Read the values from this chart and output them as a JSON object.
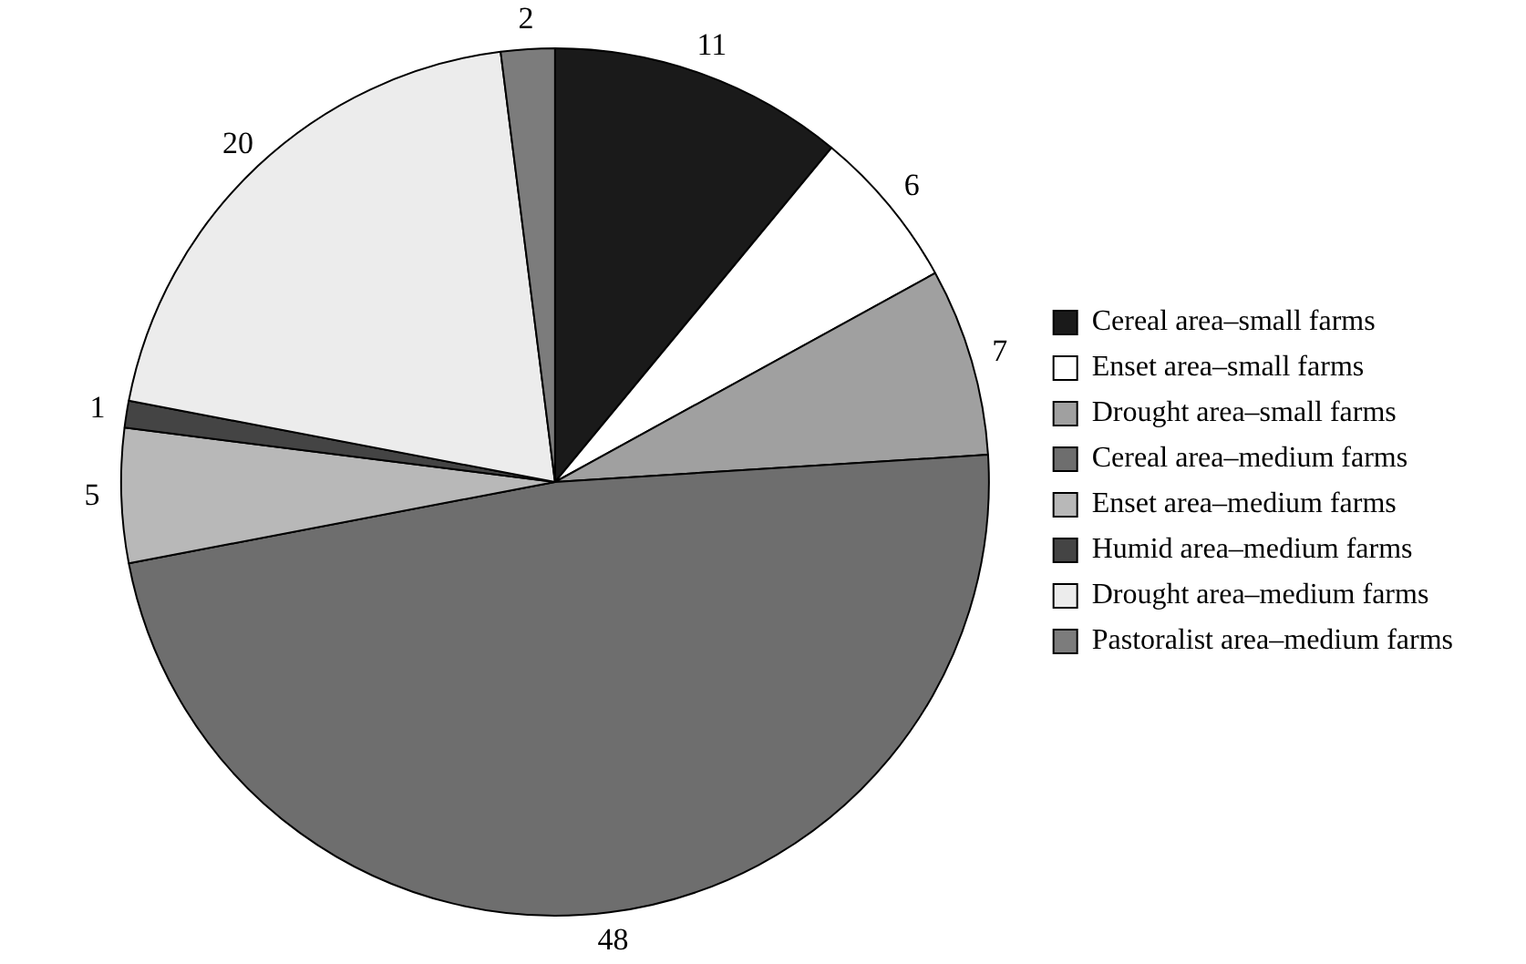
{
  "chart_data": {
    "type": "pie",
    "categories": [
      "Cereal area–small farms",
      "Enset area–small farms",
      "Drought area–small farms",
      "Cereal area–medium farms",
      "Enset area–medium farms",
      "Humid area–medium farms",
      "Drought area–medium farms",
      "Pastoralist area–medium farms"
    ],
    "values": [
      11,
      6,
      7,
      48,
      5,
      1,
      20,
      2
    ],
    "colors": [
      "#1a1a1a",
      "#ffffff",
      "#a0a0a0",
      "#6e6e6e",
      "#b8b8b8",
      "#444444",
      "#ececec",
      "#7c7c7c"
    ],
    "data_labels": true,
    "legend": "right"
  }
}
